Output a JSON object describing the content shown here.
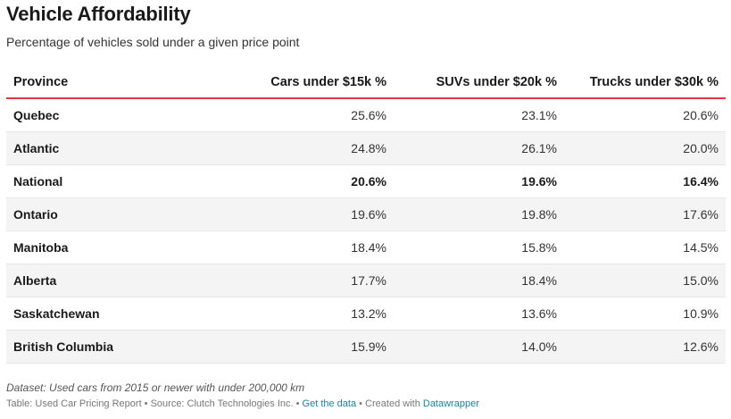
{
  "title": "Vehicle Affordability",
  "subtitle": "Percentage of vehicles sold under a given price point",
  "colors": {
    "header_rule": "#e0383e",
    "stripe": "#f4f4f4",
    "link": "#1d81a2"
  },
  "chart_data": {
    "type": "table",
    "columns": [
      "Province",
      "Cars under $15k %",
      "SUVs under $20k %",
      "Trucks under $30k %"
    ],
    "rows": [
      {
        "cells": [
          "Quebec",
          "25.6%",
          "23.1%",
          "20.6%"
        ],
        "bold": false
      },
      {
        "cells": [
          "Atlantic",
          "24.8%",
          "26.1%",
          "20.0%"
        ],
        "bold": false
      },
      {
        "cells": [
          "National",
          "20.6%",
          "19.6%",
          "16.4%"
        ],
        "bold": true
      },
      {
        "cells": [
          "Ontario",
          "19.6%",
          "19.8%",
          "17.6%"
        ],
        "bold": false
      },
      {
        "cells": [
          "Manitoba",
          "18.4%",
          "15.8%",
          "14.5%"
        ],
        "bold": false
      },
      {
        "cells": [
          "Alberta",
          "17.7%",
          "18.4%",
          "15.0%"
        ],
        "bold": false
      },
      {
        "cells": [
          "Saskatchewan",
          "13.2%",
          "13.6%",
          "10.9%"
        ],
        "bold": false
      },
      {
        "cells": [
          "British Columbia",
          "15.9%",
          "14.0%",
          "12.6%"
        ],
        "bold": false
      }
    ]
  },
  "notes": "Dataset: Used cars from 2015 or newer with under 200,000 km",
  "footer": {
    "prefix": "Table: Used Car Pricing Report • Source: Clutch Technologies Inc. • ",
    "get_data": "Get the data",
    "middle": " • Created with ",
    "tool": "Datawrapper"
  }
}
